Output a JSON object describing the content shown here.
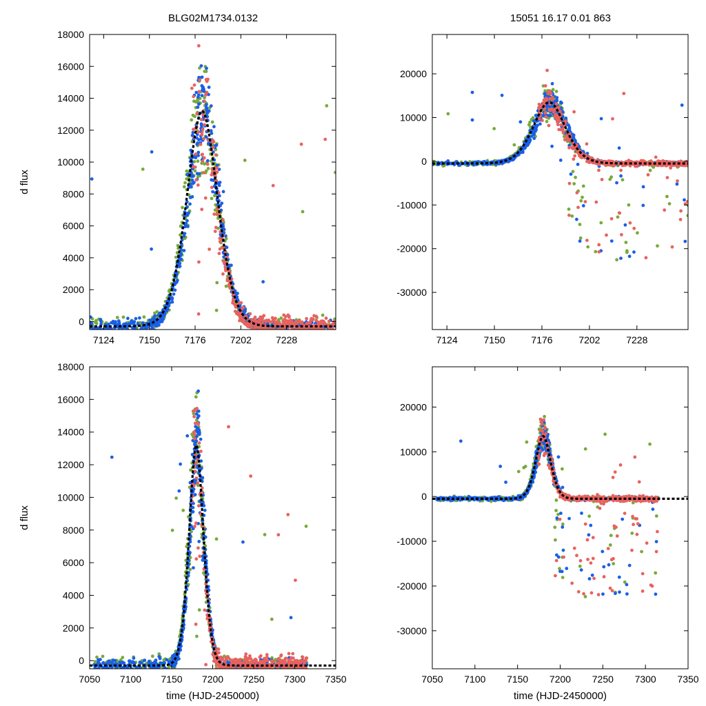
{
  "figure": {
    "title_left": "BLG02M1734.0132",
    "title_right": "15051   16.17   0.01   863"
  },
  "colors": {
    "blue": "#1a5fe6",
    "green": "#78aa3c",
    "red": "#e8625f",
    "model": "#000000"
  },
  "chart_data": [
    {
      "type": "scatter",
      "panel": "top-left",
      "title": "BLG02M1734.0132",
      "ylabel": "d flux",
      "xlabel": "",
      "xlim": [
        7116,
        7256
      ],
      "ylim": [
        -500,
        18000
      ],
      "xticks": [
        7124,
        7150,
        7176,
        7202,
        7228
      ],
      "yticks": [
        0,
        2000,
        4000,
        6000,
        8000,
        10000,
        12000,
        14000,
        16000,
        18000
      ],
      "peak_t": 7180,
      "tau": 8,
      "base": -300,
      "amp": 13500,
      "rise_scale": 1.0,
      "series": [
        {
          "name": "blue survey",
          "color": "blue"
        },
        {
          "name": "green survey",
          "color": "green"
        },
        {
          "name": "red survey",
          "color": "red"
        }
      ],
      "model": {
        "name": "fit",
        "style": "dashed",
        "color": "model"
      }
    },
    {
      "type": "scatter",
      "panel": "top-right",
      "title": "15051   16.17   0.01   863",
      "ylabel": "",
      "xlabel": "",
      "xlim": [
        7116,
        7256
      ],
      "ylim": [
        -38500,
        29000
      ],
      "xticks": [
        7124,
        7150,
        7176,
        7202,
        7228
      ],
      "yticks": [
        -30000,
        -20000,
        -10000,
        0,
        10000,
        20000
      ],
      "peak_t": 7180,
      "tau": 8,
      "base": -500,
      "amp": 14000,
      "rise_scale": 1.0,
      "series": [
        {
          "name": "blue survey",
          "color": "blue"
        },
        {
          "name": "green survey",
          "color": "green"
        },
        {
          "name": "red survey",
          "color": "red"
        }
      ],
      "model": {
        "name": "fit",
        "style": "dashed",
        "color": "model"
      }
    },
    {
      "type": "scatter",
      "panel": "bottom-left",
      "title": "",
      "ylabel": "d flux",
      "xlabel": "time (HJD-2450000)",
      "xlim": [
        7050,
        7350
      ],
      "ylim": [
        -500,
        18000
      ],
      "xticks": [
        7050,
        7100,
        7150,
        7200,
        7250,
        7300,
        7350
      ],
      "yticks": [
        0,
        2000,
        4000,
        6000,
        8000,
        10000,
        12000,
        14000,
        16000,
        18000
      ],
      "peak_t": 7180,
      "tau": 8,
      "base": -300,
      "amp": 13500,
      "rise_scale": 1.0,
      "series": [
        {
          "name": "blue survey",
          "color": "blue"
        },
        {
          "name": "green survey",
          "color": "green"
        },
        {
          "name": "red survey",
          "color": "red"
        }
      ],
      "model": {
        "name": "fit",
        "style": "dashed",
        "color": "model"
      }
    },
    {
      "type": "scatter",
      "panel": "bottom-right",
      "title": "",
      "ylabel": "",
      "xlabel": "time (HJD-2450000)",
      "xlim": [
        7050,
        7350
      ],
      "ylim": [
        -38500,
        29000
      ],
      "xticks": [
        7050,
        7100,
        7150,
        7200,
        7250,
        7300,
        7350
      ],
      "yticks": [
        -30000,
        -20000,
        -10000,
        0,
        10000,
        20000
      ],
      "peak_t": 7180,
      "tau": 8,
      "base": -500,
      "amp": 14000,
      "rise_scale": 1.0,
      "series": [
        {
          "name": "blue survey",
          "color": "blue"
        },
        {
          "name": "green survey",
          "color": "green"
        },
        {
          "name": "red survey",
          "color": "red"
        }
      ],
      "model": {
        "name": "fit",
        "style": "dashed",
        "color": "model"
      }
    }
  ]
}
